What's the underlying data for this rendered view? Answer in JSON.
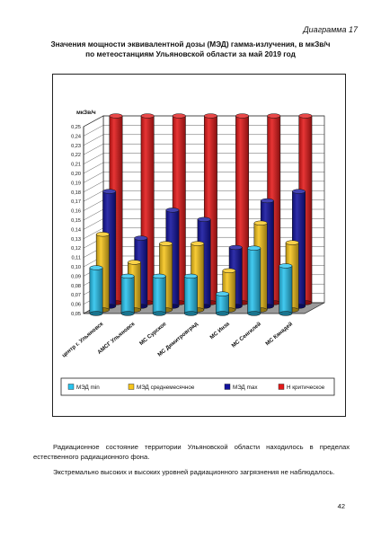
{
  "document": {
    "label": "Диаграмма 17",
    "page_number": "42",
    "paragraphs": [
      "Радиационное состояние территории Ульяновской области находилось в пределах естественного радиационного фона.",
      "Экстремально высоких и высоких уровней радиационного загрязнения не наблюдалось."
    ]
  },
  "chart_data": {
    "type": "bar",
    "title_lines": [
      "Значения мощности эквивалентной дозы (МЭД) гамма-излучения, в мкЗв/ч",
      "по метеостанциям Ульяновской области за май 2019 год"
    ],
    "ylabel": "мкЗв/ч",
    "ylim": [
      0.05,
      0.25
    ],
    "ytick_step": 0.01,
    "ytick_labels": [
      "0,05",
      "0,06",
      "0,07",
      "0,08",
      "0,09",
      "0,10",
      "0,11",
      "0,12",
      "0,13",
      "0,14",
      "0,15",
      "0,16",
      "0,17",
      "0,18",
      "0,19",
      "0,20",
      "0,21",
      "0,22",
      "0,23",
      "0,24",
      "0,25"
    ],
    "categories": [
      "центр г. Ульяновск",
      "АМСГ Ульяновск",
      "МС Сурское",
      "МС Димитровград",
      "МС Инза",
      "МС Сенгилей",
      "МС Канадей"
    ],
    "series": [
      {
        "name": "МЭД min",
        "color": "#29c3ee",
        "values": [
          0.099,
          0.09,
          0.09,
          0.09,
          0.071,
          0.12,
          0.101
        ]
      },
      {
        "name": "МЭД среднемесячное",
        "color": "#f7c51c",
        "values": [
          0.131,
          0.101,
          0.121,
          0.121,
          0.092,
          0.143,
          0.122
        ]
      },
      {
        "name": "МЭД max",
        "color": "#13139e",
        "values": [
          0.173,
          0.123,
          0.153,
          0.143,
          0.113,
          0.163,
          0.173
        ]
      },
      {
        "name": "Н критическое",
        "color": "#e41a1a",
        "values": [
          0.25,
          0.25,
          0.25,
          0.25,
          0.25,
          0.25,
          0.25
        ]
      }
    ],
    "grid": true,
    "legend_position": "bottom"
  }
}
